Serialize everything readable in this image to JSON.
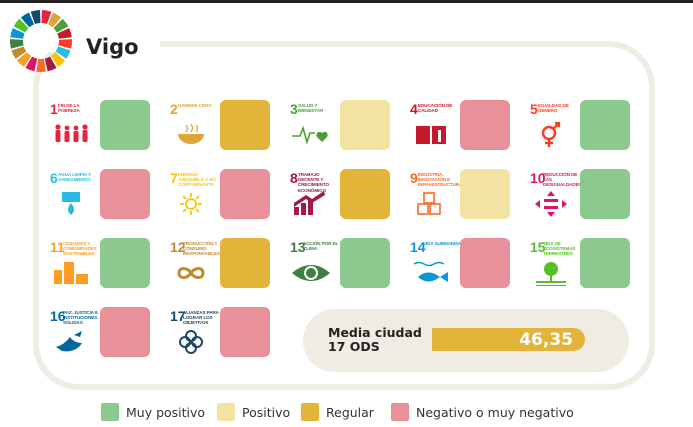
{
  "city": {
    "name": "Vigo"
  },
  "colors": {
    "muy_positivo": "#8dc88f",
    "positivo": "#f3e3a2",
    "regular": "#e3b43a",
    "negativo": "#e8919a"
  },
  "goals": [
    {
      "number": "1",
      "name": "Fin de la pobreza",
      "color": "#e5243b",
      "icon": "family-icon",
      "status": "muy_positivo"
    },
    {
      "number": "2",
      "name": "Hambre cero",
      "color": "#dda63a",
      "icon": "bowl-icon",
      "status": "regular"
    },
    {
      "number": "3",
      "name": "Salud y bienestar",
      "color": "#4c9f38",
      "icon": "heartbeat-icon",
      "status": "positivo"
    },
    {
      "number": "4",
      "name": "Educación de calidad",
      "color": "#c5192d",
      "icon": "book-icon",
      "status": "negativo"
    },
    {
      "number": "5",
      "name": "Igualdad de género",
      "color": "#ff3a21",
      "icon": "gender-icon",
      "status": "muy_positivo"
    },
    {
      "number": "6",
      "name": "Agua limpia y saneamiento",
      "color": "#26bde2",
      "icon": "water-drop-icon",
      "status": "negativo"
    },
    {
      "number": "7",
      "name": "Energía asequible y no contaminante",
      "color": "#fcc30b",
      "icon": "sun-icon",
      "status": "negativo"
    },
    {
      "number": "8",
      "name": "Trabajo decente y crecimiento económico",
      "color": "#a21942",
      "icon": "growth-chart-icon",
      "status": "regular"
    },
    {
      "number": "9",
      "name": "Industria, innovación e infraestructura",
      "color": "#fd6925",
      "icon": "cubes-icon",
      "status": "positivo"
    },
    {
      "number": "10",
      "name": "Reducción de las desigualdades",
      "color": "#dd1367",
      "icon": "equality-icon",
      "status": "muy_positivo"
    },
    {
      "number": "11",
      "name": "Ciudades y comunidades sostenibles",
      "color": "#fd9d24",
      "icon": "city-icon",
      "status": "muy_positivo"
    },
    {
      "number": "12",
      "name": "Producción y consumo responsables",
      "color": "#bf8b2e",
      "icon": "infinity-icon",
      "status": "regular"
    },
    {
      "number": "13",
      "name": "Acción por el clima",
      "color": "#3f7e44",
      "icon": "eye-globe-icon",
      "status": "muy_positivo"
    },
    {
      "number": "14",
      "name": "Vida submarina",
      "color": "#0a97d9",
      "icon": "fish-icon",
      "status": "negativo"
    },
    {
      "number": "15",
      "name": "Vida de ecosistemas terrestres",
      "color": "#56c02b",
      "icon": "tree-icon",
      "status": "muy_positivo"
    },
    {
      "number": "16",
      "name": "Paz, justicia e instituciones sólidas",
      "color": "#00689d",
      "icon": "dove-icon",
      "status": "negativo"
    },
    {
      "number": "17",
      "name": "Alianzas para lograr los objetivos",
      "color": "#19486a",
      "icon": "rings-icon",
      "status": "negativo"
    }
  ],
  "summary": {
    "label_line1": "Media ciudad",
    "label_line2": "17 ODS",
    "value": "46,35"
  },
  "legend": [
    {
      "key": "muy_positivo",
      "label": "Muy positivo"
    },
    {
      "key": "positivo",
      "label": "Positivo"
    },
    {
      "key": "regular",
      "label": "Regular"
    },
    {
      "key": "negativo",
      "label": "Negativo o muy negativo"
    }
  ]
}
